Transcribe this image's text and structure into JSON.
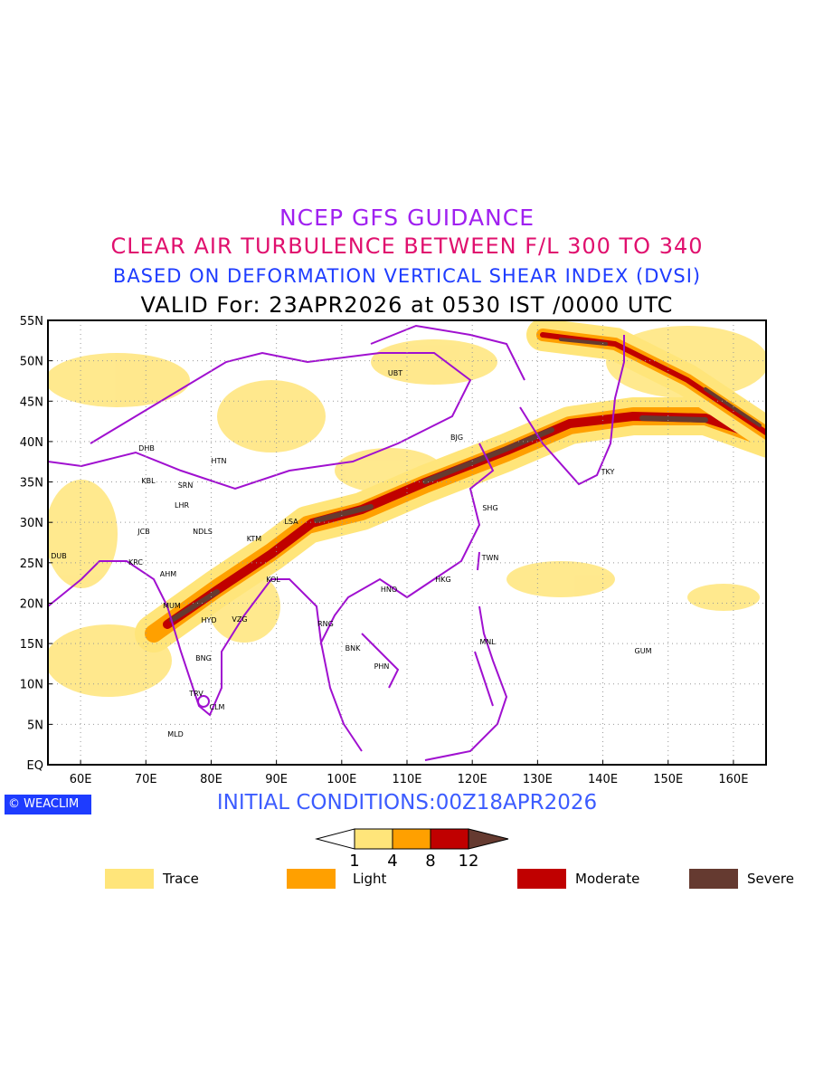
{
  "titles": {
    "line1": "NCEP GFS GUIDANCE",
    "line2": "CLEAR AIR TURBULENCE BETWEEN F/L 300 TO 340",
    "line3": "BASED ON DEFORMATION VERTICAL SHEAR INDEX (DVSI)",
    "line4": "VALID For: 23APR2026 at 0530 IST /0000 UTC"
  },
  "axes": {
    "lat_labels": [
      "EQ",
      "5N",
      "10N",
      "15N",
      "20N",
      "25N",
      "30N",
      "35N",
      "40N",
      "45N",
      "50N",
      "55N"
    ],
    "lon_labels": [
      "60E",
      "70E",
      "80E",
      "90E",
      "100E",
      "110E",
      "120E",
      "130E",
      "140E",
      "150E",
      "160E"
    ]
  },
  "cities": [
    "UBT",
    "BJG",
    "TKY",
    "SHG",
    "TWN",
    "HKG",
    "HNO",
    "MNL",
    "GUM",
    "RNG",
    "BNK",
    "PHN",
    "LSA",
    "KTM",
    "KOL",
    "DHB",
    "HTN",
    "KBL",
    "SRN",
    "LHR",
    "JCB",
    "NDLS",
    "DUB",
    "KRC",
    "AHM",
    "MUM",
    "HYD",
    "VZG",
    "BNG",
    "TRV",
    "CLM",
    "MLD"
  ],
  "footer": {
    "logo": "WEACLIM",
    "logo_symbol": "©",
    "initial_conditions": "INITIAL CONDITIONS:00Z18APR2026"
  },
  "colorbar": {
    "ticks": [
      "1",
      "4",
      "8",
      "12"
    ],
    "colors": [
      "#ffe57a",
      "#ffa000",
      "#c00000",
      "#653a30"
    ]
  },
  "legend": [
    {
      "label": "Trace",
      "color": "#ffe57a"
    },
    {
      "label": "Light",
      "color": "#ffa000"
    },
    {
      "label": "Moderate",
      "color": "#c00000"
    },
    {
      "label": "Severe",
      "color": "#653a30"
    }
  ],
  "colors": {
    "coast": "#a010d0",
    "title1": "#a020f0",
    "title2": "#e0106e",
    "title3": "#1e3cff"
  }
}
